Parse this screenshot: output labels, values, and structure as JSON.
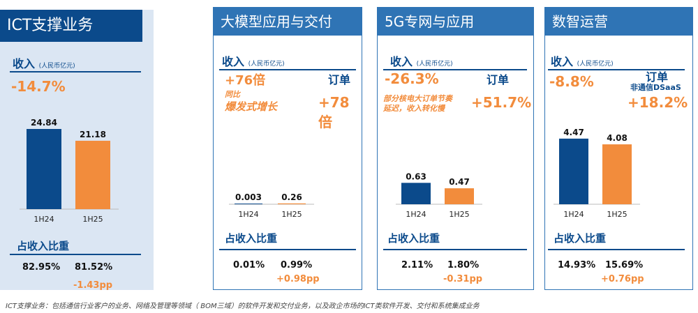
{
  "colors": {
    "navy": "#0b4a8b",
    "blue": "#2f74b5",
    "orange": "#f28c3c",
    "ict_bg": "#dbe6f3"
  },
  "revenue_label": "收入",
  "revenue_unit": "(人民币亿元)",
  "share_label": "占收入比重",
  "order_label": "订单",
  "footnote": "ICT支撑业务：包括通信行业客户的业务、网络及管理等领域（ BOM三域）的软件开发和交付业务，以及政企市场的ICT类软件开发、交付和系统集成业务",
  "panels": {
    "ict": {
      "title": "ICT支撑业务",
      "change": "-14.7%",
      "shares": [
        "82.95%",
        "81.52%"
      ],
      "share_delta": "-1.43pp"
    },
    "llm": {
      "title": "大模型应用与交付",
      "change": "+76倍",
      "note_line1": "同比",
      "note_line2": "爆发式增长",
      "order_change": "+78倍",
      "shares": [
        "0.01%",
        "0.99%"
      ],
      "share_delta": "+0.98pp"
    },
    "g5": {
      "title": "5G专网与应用",
      "change": "-26.3%",
      "note_line1": "部分核电大订单节奏",
      "note_line2": "延迟，收入转化慢",
      "order_change": "+51.7%",
      "shares": [
        "2.11%",
        "1.80%"
      ],
      "share_delta": "-0.31pp"
    },
    "dig": {
      "title": "数智运营",
      "change": "-8.8%",
      "order_sub": "非通信DSaaS",
      "order_change": "+18.2%",
      "shares": [
        "14.93%",
        "15.69%"
      ],
      "share_delta": "+0.76pp"
    }
  },
  "chart_data": [
    {
      "type": "bar",
      "title": "ICT支撑业务",
      "categories": [
        "1H24",
        "1H25"
      ],
      "values": [
        24.84,
        21.18
      ],
      "labels": [
        "24.84",
        "21.18"
      ],
      "ylabel": "收入 (人民币亿元)",
      "colors": [
        "#0b4a8b",
        "#f28c3c"
      ]
    },
    {
      "type": "bar",
      "title": "大模型应用与交付",
      "categories": [
        "1H24",
        "1H25"
      ],
      "values": [
        0.003,
        0.26
      ],
      "labels": [
        "0.003",
        "0.26"
      ],
      "ylabel": "收入 (人民币亿元)",
      "colors": [
        "#0b4a8b",
        "#f28c3c"
      ]
    },
    {
      "type": "bar",
      "title": "5G专网与应用",
      "categories": [
        "1H24",
        "1H25"
      ],
      "values": [
        0.63,
        0.47
      ],
      "labels": [
        "0.63",
        "0.47"
      ],
      "ylabel": "收入 (人民币亿元)",
      "colors": [
        "#0b4a8b",
        "#f28c3c"
      ]
    },
    {
      "type": "bar",
      "title": "数智运营",
      "categories": [
        "1H24",
        "1H25"
      ],
      "values": [
        4.47,
        4.08
      ],
      "labels": [
        "4.47",
        "4.08"
      ],
      "ylabel": "收入 (人民币亿元)",
      "colors": [
        "#0b4a8b",
        "#f28c3c"
      ]
    }
  ]
}
